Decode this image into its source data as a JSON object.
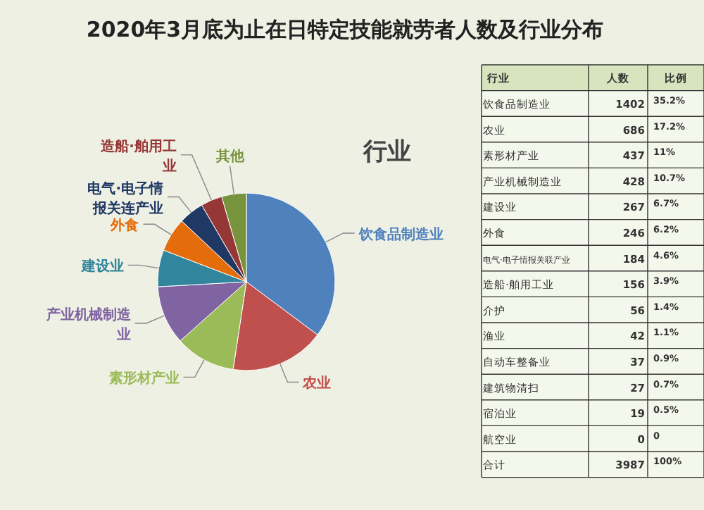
{
  "chart_data": [
    {
      "type": "pie",
      "title": "2020年3月底为止在日特定技能就劳者人数及行业分布",
      "legend_title": "行业",
      "categories": [
        "饮食品制造业",
        "农业",
        "素形材产业",
        "产业机械制造业",
        "建设业",
        "外食",
        "电气·电子情报关连产业",
        "造船·舶用工业",
        "其他"
      ],
      "values": [
        35.2,
        17.2,
        11,
        10.7,
        6.7,
        6.2,
        4.6,
        3.9,
        4.5
      ],
      "colors": [
        "#4f81bd",
        "#c0504d",
        "#9bbb59",
        "#8064a2",
        "#31859c",
        "#e46c0a",
        "#1f3864",
        "#953735",
        "#77933c"
      ]
    },
    {
      "type": "other",
      "legend_title": "行业",
      "data_labels": true,
      "categories": [
        "饮食品制造业",
        "农业",
        "素形材产业",
        "产业机械制造业",
        "建设业",
        "外食",
        "电气·电子情报关联产业",
        "造船·舶用工业",
        "介护",
        "渔业",
        "自动车整备业",
        "建筑物清扫",
        "宿泊业",
        "航空业",
        "合计"
      ],
      "series": [
        {
          "name": "人数",
          "values": [
            1402,
            686,
            437,
            428,
            267,
            246,
            184,
            156,
            56,
            42,
            37,
            27,
            19,
            0,
            3987
          ]
        },
        {
          "name": "比例",
          "values": [
            35.2,
            17.2,
            11,
            10.7,
            6.7,
            6.2,
            4.6,
            3.9,
            1.4,
            1.1,
            0.9,
            0.7,
            0.5,
            0,
            100
          ],
          "value_labels": [
            "35.2%",
            "17.2%",
            "11%",
            "10.7%",
            "6.7%",
            "6.2%",
            "4.6%",
            "3.9%",
            "1.4%",
            "1.1%",
            "0.9%",
            "0.7%",
            "0.5%",
            "0",
            "100%"
          ]
        }
      ]
    }
  ]
}
